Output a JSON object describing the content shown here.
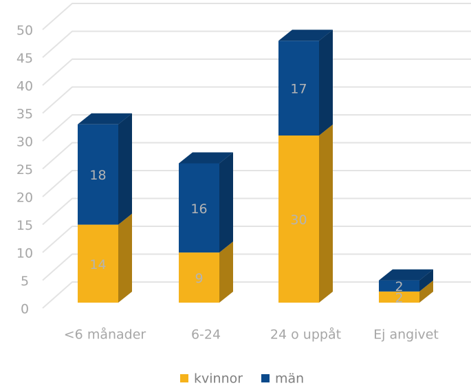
{
  "chart_data": {
    "type": "bar3d_stacked",
    "categories": [
      "<6 månader",
      "6-24",
      "24 o uppåt",
      "Ej angivet"
    ],
    "series": [
      {
        "name": "kvinnor",
        "color": "#f5b21b",
        "values": [
          14,
          9,
          30,
          2
        ]
      },
      {
        "name": "män",
        "color": "#0b4a8b",
        "values": [
          18,
          16,
          17,
          2
        ]
      }
    ],
    "ylim": [
      0,
      50
    ],
    "yticks": [
      0,
      5,
      10,
      15,
      20,
      25,
      30,
      35,
      40,
      45,
      50
    ],
    "grid": true
  }
}
